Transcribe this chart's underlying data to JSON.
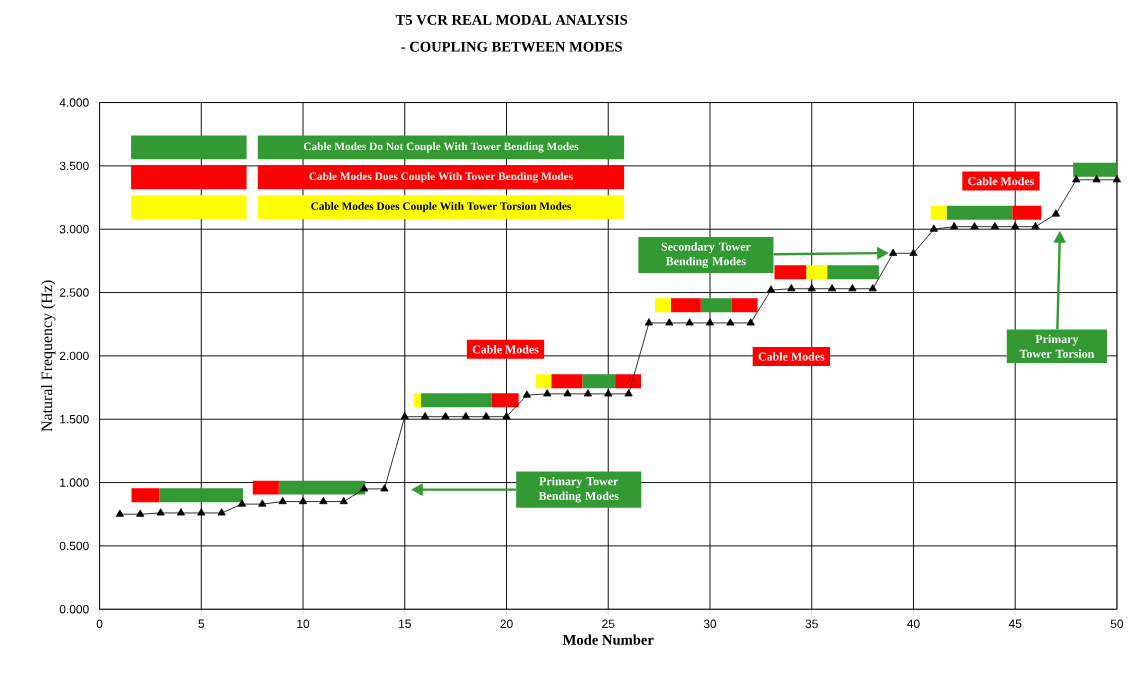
{
  "chart_data": {
    "type": "line",
    "title": "T5 VCR REAL MODAL ANALYSIS",
    "subtitle": "- COUPLING BETWEEN MODES",
    "xlabel": "Mode Number",
    "ylabel": "Natural Frequency (Hz)",
    "xlim": [
      0,
      50
    ],
    "xticks": [
      0,
      5,
      10,
      15,
      20,
      25,
      30,
      35,
      40,
      45,
      50
    ],
    "ylim": [
      0,
      4
    ],
    "yticks": [
      {
        "value": 0,
        "label": "0.000"
      },
      {
        "value": 0.5,
        "label": "0.500"
      },
      {
        "value": 1,
        "label": "1.000"
      },
      {
        "value": 1.5,
        "label": "1.500"
      },
      {
        "value": 2,
        "label": "2.000"
      },
      {
        "value": 2.5,
        "label": "2.500"
      },
      {
        "value": 3,
        "label": "3.000"
      },
      {
        "value": 3.5,
        "label": "3.500"
      },
      {
        "value": 4,
        "label": "4.000"
      }
    ],
    "grid": true,
    "marker": "triangle",
    "legend": "top left",
    "series": [
      {
        "color": "#000000",
        "x": [
          1,
          2,
          3,
          4,
          5,
          6,
          7,
          8,
          9,
          10,
          11,
          12,
          13,
          14,
          15,
          16,
          17,
          18,
          19,
          20,
          21,
          22,
          23,
          24,
          25,
          26,
          27,
          28,
          29,
          30,
          31,
          32,
          33,
          34,
          35,
          36,
          37,
          38,
          39,
          40,
          41,
          42,
          43,
          44,
          45,
          46,
          47,
          48,
          49,
          50
        ],
        "values": [
          0.75,
          0.75,
          0.76,
          0.76,
          0.76,
          0.76,
          0.83,
          0.83,
          0.85,
          0.85,
          0.85,
          0.85,
          0.95,
          0.95,
          1.52,
          1.52,
          1.52,
          1.52,
          1.52,
          1.52,
          1.69,
          1.7,
          1.7,
          1.7,
          1.7,
          1.7,
          2.26,
          2.26,
          2.26,
          2.26,
          2.26,
          2.26,
          2.52,
          2.53,
          2.53,
          2.53,
          2.53,
          2.53,
          2.81,
          2.81,
          3.0,
          3.02,
          3.02,
          3.02,
          3.02,
          3.02,
          3.12,
          3.39,
          3.39,
          3.39
        ]
      },
      {
        "name": "Cable Modes Do Not Couple With Tower Bending Modes",
        "color": "#339933",
        "marker": "none",
        "x": [
          2.94,
          7.05,
          8,
          8.81,
          13.06,
          14,
          15.8,
          19.28,
          21,
          23.73,
          25.34,
          27,
          29.55,
          31.07,
          33,
          35.76,
          38.3,
          40,
          41.63,
          44.86,
          46,
          47.85,
          50
        ],
        "values": [
          0.9,
          0.9,
          null,
          0.96,
          0.96,
          null,
          1.65,
          1.65,
          null,
          1.8,
          1.8,
          null,
          2.4,
          2.4,
          null,
          2.66,
          2.66,
          null,
          3.13,
          3.13,
          null,
          3.47,
          3.47
        ]
      },
      {
        "name": "Cable Modes Does Couple With Tower Bending Modes",
        "color": "#ff0000",
        "marker": "none",
        "x": [
          1.57,
          2.94,
          5,
          7.53,
          8.81,
          15,
          19.28,
          20.6,
          21,
          22.2,
          23.73,
          24.5,
          25.34,
          26.61,
          27,
          28.08,
          29.55,
          30.5,
          31.07,
          32.34,
          33,
          33.17,
          34.74,
          40,
          44.86,
          46.28
        ],
        "values": [
          0.9,
          0.9,
          null,
          0.96,
          0.96,
          null,
          1.65,
          1.65,
          null,
          1.8,
          1.8,
          null,
          1.8,
          1.8,
          null,
          2.4,
          2.4,
          null,
          2.4,
          2.4,
          null,
          2.66,
          2.66,
          null,
          3.13,
          3.13
        ]
      },
      {
        "name": "Cable Modes Does Couple With Tower Torsion Modes",
        "color": "#ffff00",
        "marker": "none",
        "x": [
          15.46,
          15.8,
          18,
          21.43,
          22.2,
          25,
          27.3,
          28.08,
          30,
          34.74,
          35.76,
          38,
          40.85,
          41.63
        ],
        "values": [
          1.65,
          1.65,
          null,
          1.8,
          1.8,
          null,
          2.4,
          2.4,
          null,
          2.66,
          2.66,
          null,
          3.13,
          3.13
        ]
      }
    ],
    "annotations": [
      "Primary Tower Bending Modes",
      "Secondary Tower Bending Modes",
      "Primary Tower Torsion",
      "Cable Modes",
      "Cable Modes",
      "Cable Modes"
    ]
  }
}
